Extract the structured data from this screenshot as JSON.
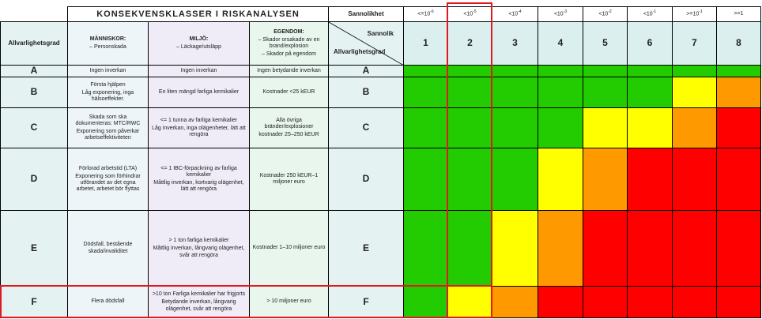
{
  "title": "KONSEKVENSKLASSER I RISKANALYSEN",
  "probability_label": "Sannolikhet",
  "probability_classes": [
    {
      "base": "<=10",
      "sup": "-6"
    },
    {
      "base": "<10",
      "sup": "-5"
    },
    {
      "base": "<10",
      "sup": "-4"
    },
    {
      "base": "<10",
      "sup": "-3"
    },
    {
      "base": "<10",
      "sup": "-2"
    },
    {
      "base": "<10",
      "sup": "-1"
    },
    {
      "base": ">=10",
      "sup": "-1"
    },
    {
      "base": ">=1"
    }
  ],
  "header": {
    "severity": "Allvarlighetsgrad",
    "columns": [
      {
        "title": "MÄNNISKOR:",
        "lines": [
          "– Personskada"
        ]
      },
      {
        "title": "MILJÖ:",
        "lines": [
          "– Läckage/utsläpp"
        ]
      },
      {
        "title": "EGENDOM:",
        "lines": [
          "– Skador orsakade av en brand/explosion",
          "– Skador på egendom"
        ]
      }
    ],
    "diagonal_top": "Sannolik",
    "diagonal_bottom": "Allvarlighetsgrad",
    "numbers": [
      1,
      2,
      3,
      4,
      5,
      6,
      7,
      8
    ]
  },
  "rows": [
    {
      "class": "A",
      "cells": [
        [
          "Ingen inverkan"
        ],
        [
          "Ingen inverkan"
        ],
        [
          "Ingen betydande inverkan"
        ]
      ],
      "colors": [
        "#22cc00",
        "#22cc00",
        "#22cc00",
        "#22cc00",
        "#22cc00",
        "#22cc00",
        "#22cc00",
        "#22cc00"
      ]
    },
    {
      "class": "B",
      "cells": [
        [
          "Första hjälpen",
          "Låg exponering, inga hälsoeffekter."
        ],
        [
          "En liten mängd farliga kemikalier"
        ],
        [
          "Kostnader <25 kEUR"
        ]
      ],
      "colors": [
        "#22cc00",
        "#22cc00",
        "#22cc00",
        "#22cc00",
        "#22cc00",
        "#22cc00",
        "#ffff00",
        "#ff9900"
      ]
    },
    {
      "class": "C",
      "cells": [
        [
          "Skada som ska dokumenteras: MTC/RWC",
          "Exponering som påverkar arbetseffektiviteten"
        ],
        [
          "<= 1 tunna av farliga kemikalier",
          "Låg inverkan, inga olägenheter, lätt att rengöra"
        ],
        [
          "Alla övriga bränder/explosioner",
          "kostnader 25–250 kEUR"
        ]
      ],
      "colors": [
        "#22cc00",
        "#22cc00",
        "#22cc00",
        "#22cc00",
        "#ffff00",
        "#ffff00",
        "#ff9900",
        "#ff0000"
      ]
    },
    {
      "class": "D",
      "cells": [
        [
          "Förlorad arbetstid (LTA)",
          "Exponering som förhindrar utförandet av det egna arbetet, arbetet bör flyttas"
        ],
        [
          "<= 1 IBC-förpackning av farliga kemikalier",
          "Måttlig inverkan, kortvarig olägenhet, lätt att rengöra"
        ],
        [
          "Kostnader 250 kEUR–1 miljoner euro"
        ]
      ],
      "colors": [
        "#22cc00",
        "#22cc00",
        "#22cc00",
        "#ffff00",
        "#ff9900",
        "#ff0000",
        "#ff0000",
        "#ff0000"
      ]
    },
    {
      "class": "E",
      "cells": [
        [
          "Dödsfall, bestående skada/invaliditet"
        ],
        [
          "> 1 ton farliga kemikalier",
          "Måttlig inverkan, långvarig olägenhet, svår att rengöra"
        ],
        [
          "Kostnader 1–10 miljoner euro"
        ]
      ],
      "colors": [
        "#22cc00",
        "#22cc00",
        "#ffff00",
        "#ff9900",
        "#ff0000",
        "#ff0000",
        "#ff0000",
        "#ff0000"
      ]
    },
    {
      "class": "F",
      "cells": [
        [
          "Flera dödsfall"
        ],
        [
          ">10 ton Farliga kemikalier har frigjorts",
          "Betydande inverkan, långvarig olägenhet, svår att rengöra"
        ],
        [
          "> 10 miljoner euro"
        ]
      ],
      "colors": [
        "#22cc00",
        "#ffff00",
        "#ff9900",
        "#ff0000",
        "#ff0000",
        "#ff0000",
        "#ff0000",
        "#ff0000"
      ]
    }
  ]
}
